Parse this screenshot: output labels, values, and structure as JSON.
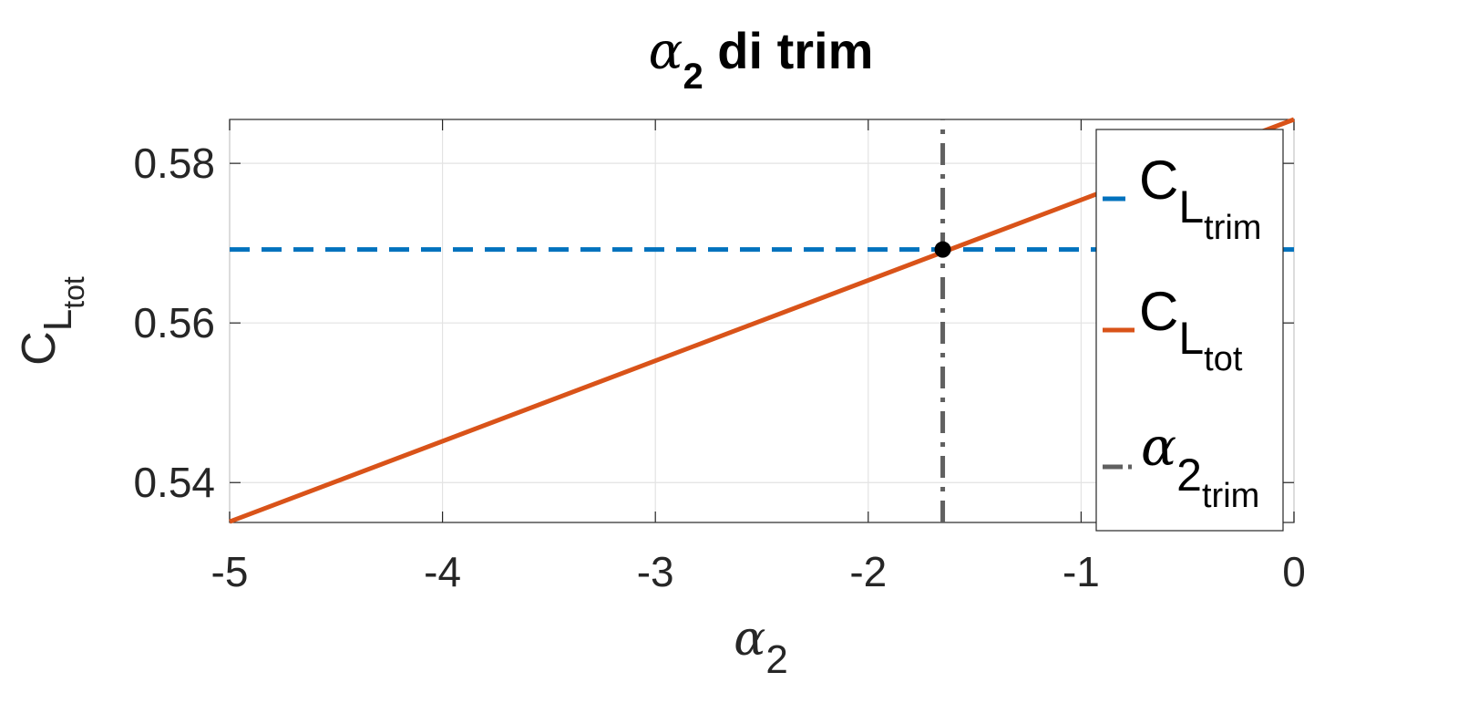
{
  "chart_data": {
    "type": "line",
    "title": {
      "symbol": "α",
      "subscript": "2",
      "text": " di trim"
    },
    "xlabel": {
      "symbol": "α",
      "subscript": "2"
    },
    "ylabel": {
      "main": "C",
      "sub1": "L",
      "sub2": "tot"
    },
    "xlim": [
      -5,
      0
    ],
    "ylim": [
      0.535,
      0.5855
    ],
    "xticks": [
      -5,
      -4,
      -3,
      -2,
      -1,
      0
    ],
    "xtick_labels": [
      "-5",
      "-4",
      "-3",
      "-2",
      "-1",
      "0"
    ],
    "yticks": [
      0.54,
      0.56,
      0.58
    ],
    "ytick_labels": [
      "0.54",
      "0.56",
      "0.58"
    ],
    "grid": true,
    "legend_position": "right",
    "series": [
      {
        "key": "cl_trim",
        "legend": {
          "main": "C",
          "sub1": "L",
          "sub2": "trim"
        },
        "style": "dashed",
        "color": "#0072BD",
        "x": [
          -5,
          0
        ],
        "y": [
          0.5692,
          0.5692
        ]
      },
      {
        "key": "cl_tot",
        "legend": {
          "main": "C",
          "sub1": "L",
          "sub2": "tot"
        },
        "style": "solid",
        "color": "#D95319",
        "x": [
          -5,
          0
        ],
        "y": [
          0.5351,
          0.5855
        ]
      },
      {
        "key": "alpha_trim",
        "legend": {
          "main": "α",
          "sub1": "2",
          "sub2": "trim"
        },
        "style": "dashdot",
        "color": "#606060",
        "x": [
          -1.65,
          -1.65
        ],
        "y": [
          0.535,
          0.5855
        ]
      }
    ],
    "marker": {
      "x": -1.65,
      "y": 0.5692,
      "color": "#000000"
    }
  }
}
